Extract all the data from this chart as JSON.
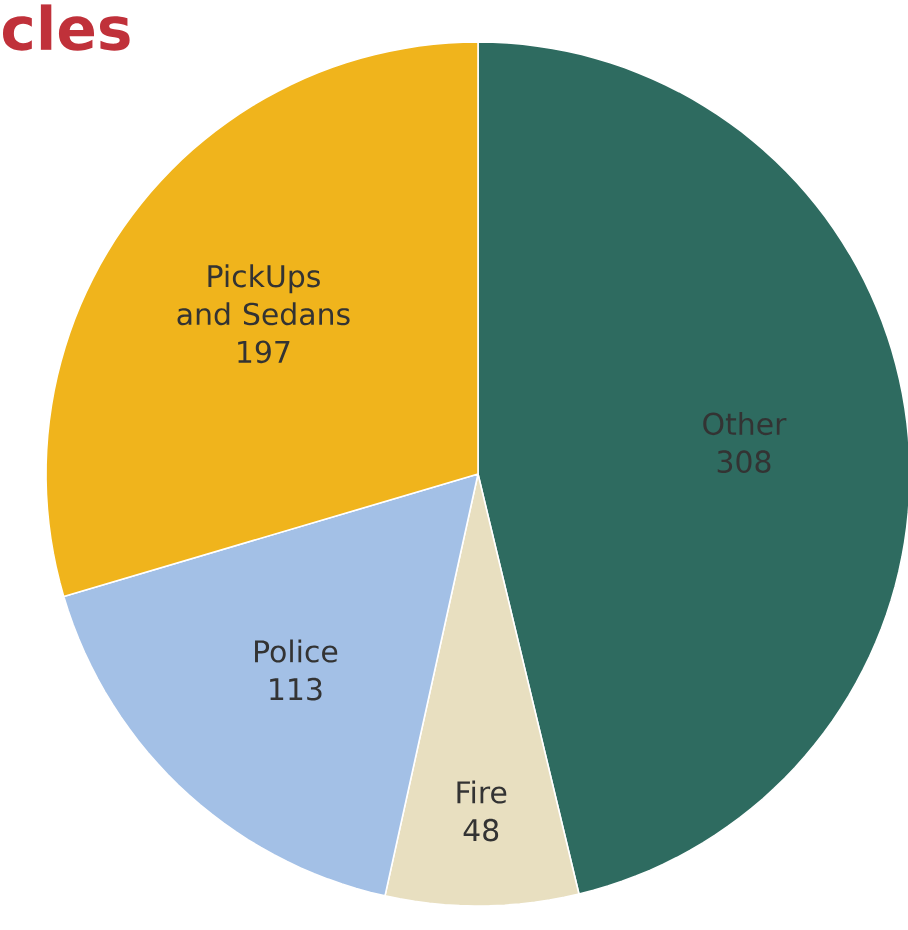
{
  "chart_data": {
    "type": "pie",
    "title": "cles",
    "categories": [
      "Other",
      "Fire",
      "Police",
      "PickUps and Sedans"
    ],
    "values": [
      308,
      48,
      113,
      197
    ],
    "colors": [
      "#2e6b60",
      "#e8dfc0",
      "#a3c0e6",
      "#f0b41c"
    ],
    "data_labels": true
  }
}
